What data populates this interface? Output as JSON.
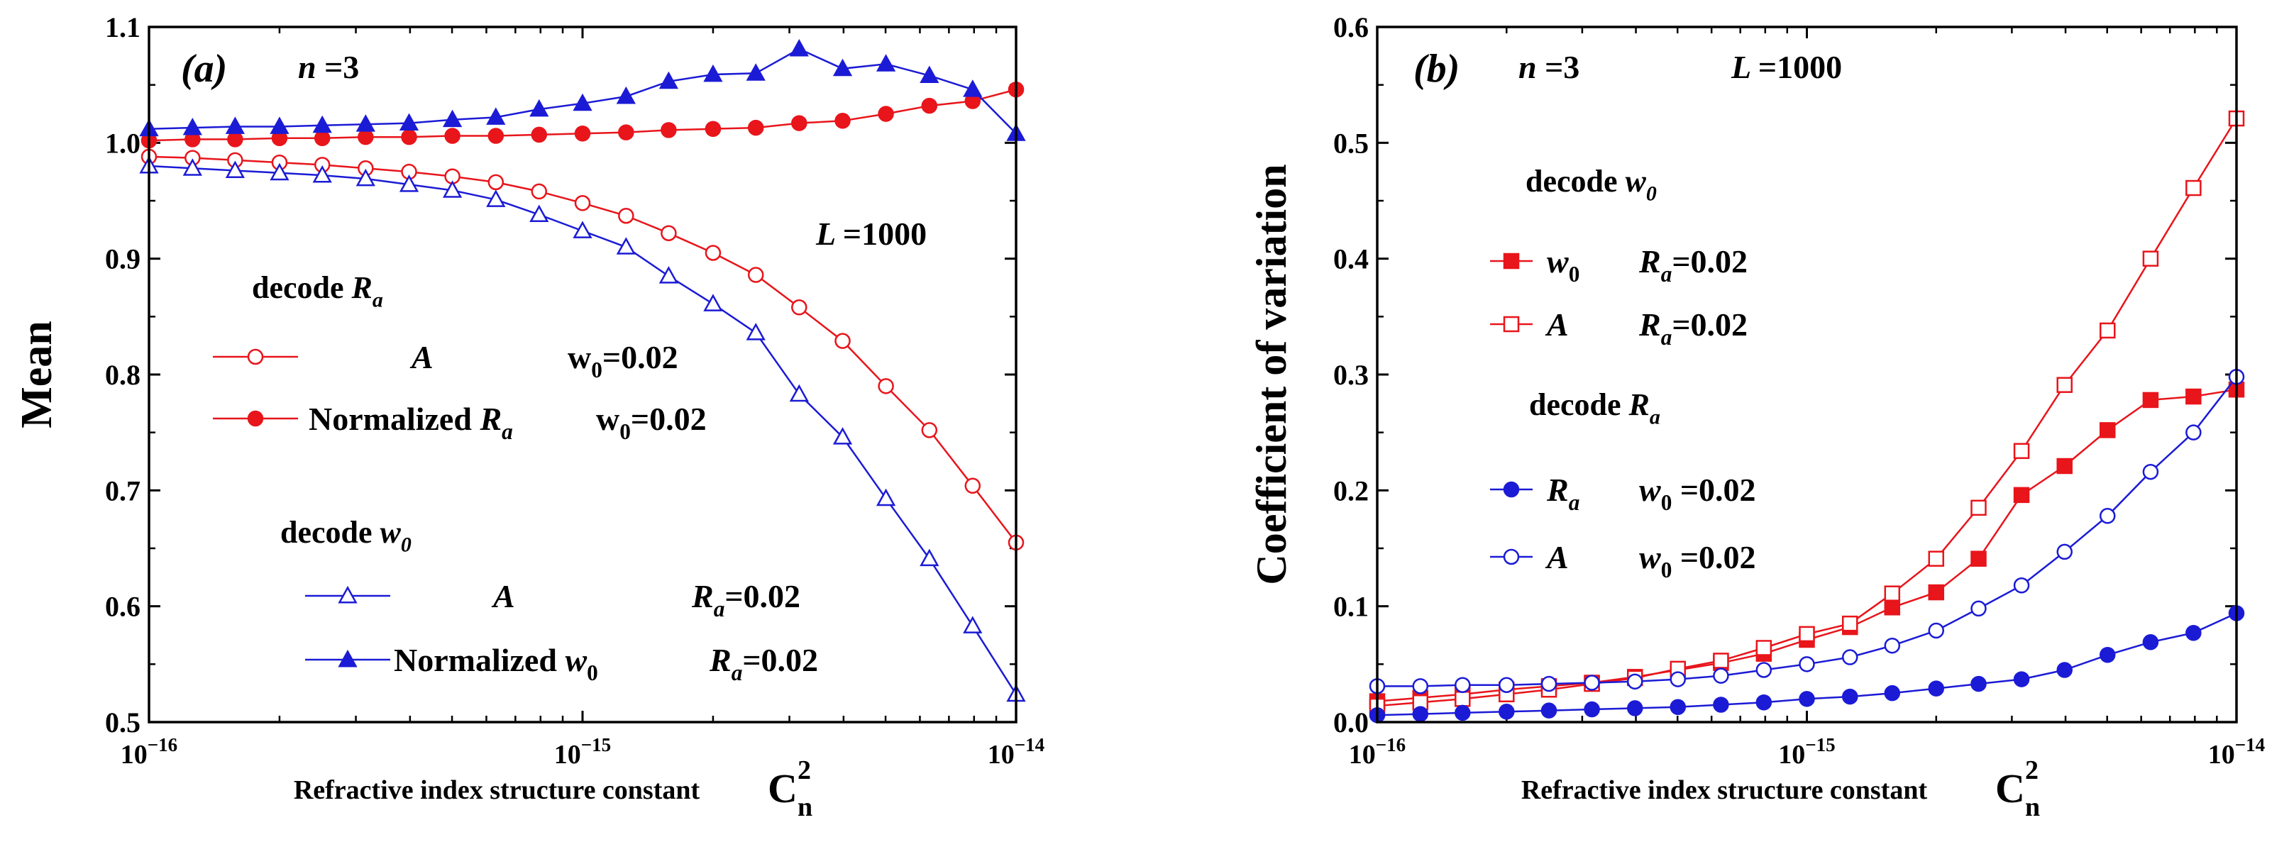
{
  "chart_data": [
    {
      "type": "line",
      "panel_label": "(a)",
      "ylabel": "Mean",
      "xlabel": "Refractive index structure constant",
      "xlabel_symbol": "C",
      "xlabel_sup": "2",
      "xlabel_sub": "n",
      "xscale": "log",
      "xlim": [
        1e-16,
        1e-14
      ],
      "ylim": [
        0.5,
        1.1
      ],
      "xticks": [
        {
          "value": 1e-16,
          "base": "10",
          "exp": "−16"
        },
        {
          "value": 1e-15,
          "base": "10",
          "exp": "−15"
        },
        {
          "value": 1e-14,
          "base": "10",
          "exp": "−14"
        }
      ],
      "yticks": [
        "0.5",
        "0.6",
        "0.7",
        "0.8",
        "0.9",
        "1.0",
        "1.1"
      ],
      "annotations": {
        "n_label": "n =3",
        "L_label": "L =1000",
        "group1_title": "decode R",
        "group1_title_sub": "a",
        "group2_title": "decode w",
        "group2_title_sub": "0"
      },
      "legend": [
        {
          "series": 0,
          "parts": [
            {
              "t": "A",
              "i": true
            }
          ],
          "param": [
            {
              "t": "w"
            },
            {
              "t": "0",
              "sub": true
            },
            {
              "t": "=0.02"
            }
          ]
        },
        {
          "series": 1,
          "parts": [
            {
              "t": "Normalized "
            },
            {
              "t": "R",
              "i": true
            },
            {
              "t": "a",
              "sub": true,
              "i": true
            }
          ],
          "param": [
            {
              "t": "w"
            },
            {
              "t": "0",
              "sub": true
            },
            {
              "t": "=0.02"
            }
          ]
        },
        {
          "series": 2,
          "parts": [
            {
              "t": "A",
              "i": true
            }
          ],
          "param": [
            {
              "t": "R",
              "i": true
            },
            {
              "t": "a",
              "sub": true,
              "i": true
            },
            {
              "t": "=0.02"
            }
          ]
        },
        {
          "series": 3,
          "parts": [
            {
              "t": "Normalized "
            },
            {
              "t": "w",
              "i": true
            },
            {
              "t": "0",
              "sub": true
            }
          ],
          "param": [
            {
              "t": "R",
              "i": true
            },
            {
              "t": "a",
              "sub": true,
              "i": true
            },
            {
              "t": "=0.02"
            }
          ]
        }
      ],
      "x": [
        1e-16,
        1.26e-16,
        1.58e-16,
        2e-16,
        2.51e-16,
        3.16e-16,
        3.98e-16,
        5.01e-16,
        6.31e-16,
        7.94e-16,
        1e-15,
        1.26e-15,
        1.58e-15,
        2e-15,
        2.51e-15,
        3.16e-15,
        3.98e-15,
        5.01e-15,
        6.31e-15,
        7.94e-15,
        1e-14
      ],
      "series": [
        {
          "color": "#e8151b",
          "marker": "circle",
          "filled": false,
          "values": [
            0.988,
            0.987,
            0.985,
            0.983,
            0.981,
            0.978,
            0.975,
            0.971,
            0.966,
            0.958,
            0.948,
            0.937,
            0.922,
            0.905,
            0.886,
            0.858,
            0.829,
            0.79,
            0.752,
            0.704,
            0.655
          ]
        },
        {
          "color": "#e8151b",
          "marker": "circle",
          "filled": true,
          "values": [
            1.002,
            1.003,
            1.003,
            1.004,
            1.004,
            1.005,
            1.005,
            1.006,
            1.006,
            1.007,
            1.008,
            1.009,
            1.011,
            1.012,
            1.013,
            1.017,
            1.019,
            1.025,
            1.032,
            1.036,
            1.046
          ]
        },
        {
          "color": "#1b1bd6",
          "marker": "triangle",
          "filled": false,
          "values": [
            0.98,
            0.978,
            0.976,
            0.974,
            0.972,
            0.969,
            0.964,
            0.959,
            0.951,
            0.938,
            0.924,
            0.91,
            0.885,
            0.861,
            0.836,
            0.783,
            0.746,
            0.693,
            0.641,
            0.583,
            0.524
          ]
        },
        {
          "color": "#1b1bd6",
          "marker": "triangle",
          "filled": true,
          "values": [
            1.012,
            1.013,
            1.014,
            1.014,
            1.015,
            1.016,
            1.017,
            1.02,
            1.022,
            1.029,
            1.034,
            1.04,
            1.053,
            1.059,
            1.06,
            1.081,
            1.064,
            1.068,
            1.058,
            1.046,
            1.008
          ]
        }
      ]
    },
    {
      "type": "line",
      "panel_label": "(b)",
      "ylabel": "Coefficient of variation",
      "xlabel": "Refractive index structure constant",
      "xlabel_symbol": "C",
      "xlabel_sup": "2",
      "xlabel_sub": "n",
      "xscale": "log",
      "xlim": [
        1e-16,
        1e-14
      ],
      "ylim": [
        0.0,
        0.6
      ],
      "xticks": [
        {
          "value": 1e-16,
          "base": "10",
          "exp": "−16"
        },
        {
          "value": 1e-15,
          "base": "10",
          "exp": "−15"
        },
        {
          "value": 1e-14,
          "base": "10",
          "exp": "−14"
        }
      ],
      "yticks": [
        "0.0",
        "0.1",
        "0.2",
        "0.3",
        "0.4",
        "0.5",
        "0.6"
      ],
      "annotations": {
        "n_label": "n =3",
        "L_label": "L =1000",
        "group1_title": "decode w",
        "group1_title_sub": "0",
        "group2_title": "decode R",
        "group2_title_sub": "a"
      },
      "legend": [
        {
          "series": 0,
          "parts": [
            {
              "t": "w",
              "i": true
            },
            {
              "t": "0",
              "sub": true
            }
          ],
          "param": [
            {
              "t": "R",
              "i": true
            },
            {
              "t": "a",
              "sub": true,
              "i": true
            },
            {
              "t": "=0.02"
            }
          ]
        },
        {
          "series": 1,
          "parts": [
            {
              "t": "A",
              "i": true
            }
          ],
          "param": [
            {
              "t": "R",
              "i": true
            },
            {
              "t": "a",
              "sub": true,
              "i": true
            },
            {
              "t": "=0.02"
            }
          ]
        },
        {
          "series": 2,
          "parts": [
            {
              "t": "R",
              "i": true
            },
            {
              "t": "a",
              "sub": true,
              "i": true
            }
          ],
          "param": [
            {
              "t": "w",
              "i": true
            },
            {
              "t": "0",
              "sub": true
            },
            {
              "t": " =0.02"
            }
          ]
        },
        {
          "series": 3,
          "parts": [
            {
              "t": "A",
              "i": true
            }
          ],
          "param": [
            {
              "t": "w",
              "i": true
            },
            {
              "t": "0",
              "sub": true
            },
            {
              "t": " =0.02"
            }
          ]
        }
      ],
      "x": [
        1e-16,
        1.26e-16,
        1.58e-16,
        2e-16,
        2.51e-16,
        3.16e-16,
        3.98e-16,
        5.01e-16,
        6.31e-16,
        7.94e-16,
        1e-15,
        1.26e-15,
        1.58e-15,
        2e-15,
        2.51e-15,
        3.16e-15,
        3.98e-15,
        5.01e-15,
        6.31e-15,
        7.94e-15,
        1e-14
      ],
      "series": [
        {
          "color": "#e8151b",
          "marker": "square",
          "filled": true,
          "values": [
            0.018,
            0.021,
            0.024,
            0.028,
            0.031,
            0.034,
            0.039,
            0.045,
            0.051,
            0.059,
            0.071,
            0.082,
            0.099,
            0.112,
            0.141,
            0.196,
            0.221,
            0.252,
            0.278,
            0.281,
            0.287
          ]
        },
        {
          "color": "#e8151b",
          "marker": "square",
          "filled": false,
          "values": [
            0.014,
            0.017,
            0.02,
            0.024,
            0.028,
            0.033,
            0.038,
            0.046,
            0.053,
            0.064,
            0.076,
            0.085,
            0.111,
            0.141,
            0.185,
            0.234,
            0.291,
            0.338,
            0.4,
            0.461,
            0.521
          ]
        },
        {
          "color": "#1b1bd6",
          "marker": "circle",
          "filled": true,
          "values": [
            0.006,
            0.007,
            0.008,
            0.009,
            0.01,
            0.011,
            0.012,
            0.013,
            0.015,
            0.017,
            0.02,
            0.022,
            0.025,
            0.029,
            0.033,
            0.037,
            0.045,
            0.058,
            0.069,
            0.077,
            0.094
          ]
        },
        {
          "color": "#1b1bd6",
          "marker": "circle",
          "filled": false,
          "values": [
            0.031,
            0.031,
            0.032,
            0.032,
            0.033,
            0.034,
            0.035,
            0.037,
            0.04,
            0.045,
            0.05,
            0.056,
            0.066,
            0.079,
            0.098,
            0.118,
            0.147,
            0.178,
            0.216,
            0.25,
            0.298
          ]
        }
      ]
    }
  ]
}
